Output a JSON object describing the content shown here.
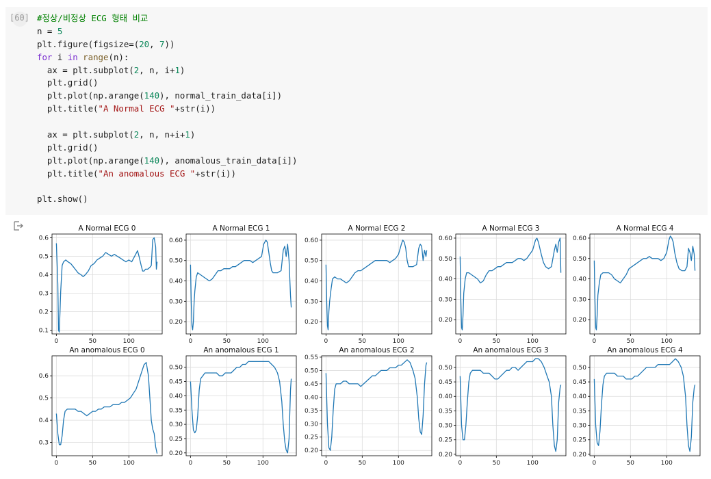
{
  "cell": {
    "execution_count": "[60]",
    "code_lines": [
      [
        {
          "t": "#정상/비정상 ECG 형태 비교",
          "c": "comment"
        }
      ],
      [
        {
          "t": "n = ",
          "c": "plain"
        },
        {
          "t": "5",
          "c": "num"
        }
      ],
      [
        {
          "t": "plt.figure(figsize=(",
          "c": "plain"
        },
        {
          "t": "20",
          "c": "num"
        },
        {
          "t": ", ",
          "c": "plain"
        },
        {
          "t": "7",
          "c": "num"
        },
        {
          "t": "))",
          "c": "plain"
        }
      ],
      [
        {
          "t": "for",
          "c": "kw"
        },
        {
          "t": " i ",
          "c": "plain"
        },
        {
          "t": "in",
          "c": "kw"
        },
        {
          "t": " ",
          "c": "plain"
        },
        {
          "t": "range",
          "c": "fn"
        },
        {
          "t": "(n):",
          "c": "plain"
        }
      ],
      [
        {
          "t": "  ax = plt.subplot(",
          "c": "plain"
        },
        {
          "t": "2",
          "c": "num"
        },
        {
          "t": ", n, i+",
          "c": "plain"
        },
        {
          "t": "1",
          "c": "num"
        },
        {
          "t": ")",
          "c": "plain"
        }
      ],
      [
        {
          "t": "  plt.grid()",
          "c": "plain"
        }
      ],
      [
        {
          "t": "  plt.plot(np.arange(",
          "c": "plain"
        },
        {
          "t": "140",
          "c": "num"
        },
        {
          "t": "), normal_train_data[i])",
          "c": "plain"
        }
      ],
      [
        {
          "t": "  plt.title(",
          "c": "plain"
        },
        {
          "t": "\"A Normal ECG \"",
          "c": "str"
        },
        {
          "t": "+str(i))",
          "c": "plain"
        }
      ],
      [],
      [
        {
          "t": "  ax = plt.subplot(",
          "c": "plain"
        },
        {
          "t": "2",
          "c": "num"
        },
        {
          "t": ", n, n+i+",
          "c": "plain"
        },
        {
          "t": "1",
          "c": "num"
        },
        {
          "t": ")",
          "c": "plain"
        }
      ],
      [
        {
          "t": "  plt.grid()",
          "c": "plain"
        }
      ],
      [
        {
          "t": "  plt.plot(np.arange(",
          "c": "plain"
        },
        {
          "t": "140",
          "c": "num"
        },
        {
          "t": "), anomalous_train_data[i])",
          "c": "plain"
        }
      ],
      [
        {
          "t": "  plt.title(",
          "c": "plain"
        },
        {
          "t": "\"An anomalous ECG \"",
          "c": "str"
        },
        {
          "t": "+str(i))",
          "c": "plain"
        }
      ],
      [],
      [
        {
          "t": "plt.show()",
          "c": "plain"
        }
      ]
    ]
  },
  "output": {
    "icon": "output-arrow-icon"
  },
  "colors": {
    "line": "#1f77b4",
    "grid": "#dcdcdc",
    "axes": "#000000",
    "cell_bg": "#f7f7f7"
  },
  "chart_data": [
    {
      "type": "line",
      "title": "A Normal ECG 0",
      "xlim": [
        -6,
        146
      ],
      "ylim": [
        0.08,
        0.62
      ],
      "xticks": [
        0,
        50,
        100
      ],
      "yticks": [
        0.1,
        0.2,
        0.3,
        0.4,
        0.5,
        0.6
      ],
      "grid": true,
      "x": [
        0,
        2,
        3,
        4,
        5,
        6,
        8,
        10,
        13,
        16,
        20,
        24,
        28,
        30,
        34,
        37,
        40,
        44,
        48,
        52,
        56,
        60,
        64,
        68,
        72,
        76,
        80,
        84,
        88,
        92,
        96,
        100,
        104,
        108,
        112,
        114,
        117,
        119,
        121,
        123,
        126,
        129,
        131,
        133,
        135,
        137,
        138,
        139
      ],
      "y": [
        0.57,
        0.35,
        0.1,
        0.09,
        0.2,
        0.31,
        0.45,
        0.47,
        0.48,
        0.47,
        0.46,
        0.44,
        0.42,
        0.41,
        0.4,
        0.39,
        0.4,
        0.42,
        0.45,
        0.46,
        0.48,
        0.49,
        0.5,
        0.52,
        0.51,
        0.5,
        0.51,
        0.5,
        0.49,
        0.48,
        0.47,
        0.48,
        0.47,
        0.5,
        0.53,
        0.5,
        0.45,
        0.42,
        0.42,
        0.43,
        0.43,
        0.44,
        0.45,
        0.59,
        0.6,
        0.55,
        0.43,
        0.47
      ]
    },
    {
      "type": "line",
      "title": "A Normal ECG 1",
      "xlim": [
        -6,
        146
      ],
      "ylim": [
        0.14,
        0.63
      ],
      "xticks": [
        0,
        50,
        100
      ],
      "yticks": [
        0.2,
        0.3,
        0.4,
        0.5,
        0.6
      ],
      "grid": true,
      "x": [
        0,
        1,
        2,
        3,
        4,
        5,
        6,
        8,
        10,
        14,
        18,
        22,
        26,
        30,
        34,
        38,
        42,
        46,
        50,
        54,
        58,
        62,
        66,
        70,
        74,
        78,
        82,
        86,
        90,
        94,
        98,
        101,
        104,
        106,
        108,
        110,
        112,
        114,
        117,
        120,
        125,
        128,
        130,
        132,
        134,
        136,
        138,
        139
      ],
      "y": [
        0.48,
        0.3,
        0.18,
        0.16,
        0.2,
        0.3,
        0.35,
        0.42,
        0.44,
        0.43,
        0.42,
        0.41,
        0.4,
        0.41,
        0.43,
        0.45,
        0.45,
        0.46,
        0.46,
        0.46,
        0.47,
        0.47,
        0.48,
        0.49,
        0.5,
        0.5,
        0.5,
        0.49,
        0.5,
        0.51,
        0.52,
        0.58,
        0.6,
        0.59,
        0.54,
        0.49,
        0.45,
        0.44,
        0.44,
        0.44,
        0.45,
        0.55,
        0.57,
        0.52,
        0.58,
        0.5,
        0.33,
        0.27
      ]
    },
    {
      "type": "line",
      "title": "A Normal ECG 2",
      "xlim": [
        -6,
        146
      ],
      "ylim": [
        0.14,
        0.63
      ],
      "xticks": [
        0,
        50,
        100
      ],
      "yticks": [
        0.2,
        0.3,
        0.4,
        0.5,
        0.6
      ],
      "grid": true,
      "x": [
        0,
        1,
        2,
        3,
        4,
        5,
        7,
        9,
        12,
        16,
        20,
        24,
        28,
        32,
        36,
        40,
        44,
        48,
        52,
        56,
        60,
        64,
        68,
        72,
        76,
        80,
        84,
        88,
        92,
        96,
        100,
        104,
        106,
        108,
        110,
        112,
        114,
        117,
        120,
        125,
        128,
        130,
        132,
        134,
        136,
        138,
        139
      ],
      "y": [
        0.48,
        0.3,
        0.18,
        0.16,
        0.25,
        0.3,
        0.36,
        0.41,
        0.42,
        0.41,
        0.41,
        0.4,
        0.39,
        0.4,
        0.42,
        0.44,
        0.45,
        0.45,
        0.46,
        0.47,
        0.48,
        0.49,
        0.5,
        0.5,
        0.5,
        0.5,
        0.5,
        0.49,
        0.5,
        0.51,
        0.53,
        0.58,
        0.6,
        0.59,
        0.56,
        0.5,
        0.47,
        0.47,
        0.47,
        0.48,
        0.56,
        0.58,
        0.57,
        0.5,
        0.55,
        0.52,
        0.55
      ]
    },
    {
      "type": "line",
      "title": "A Normal ECG 3",
      "xlim": [
        -6,
        146
      ],
      "ylim": [
        0.13,
        0.62
      ],
      "xticks": [
        0,
        50,
        100
      ],
      "yticks": [
        0.2,
        0.3,
        0.4,
        0.5,
        0.6
      ],
      "grid": true,
      "x": [
        0,
        1,
        2,
        3,
        4,
        5,
        7,
        9,
        12,
        16,
        20,
        24,
        28,
        32,
        36,
        40,
        44,
        48,
        52,
        56,
        60,
        64,
        68,
        72,
        76,
        80,
        84,
        88,
        92,
        96,
        100,
        104,
        106,
        108,
        110,
        112,
        115,
        118,
        122,
        126,
        130,
        132,
        134,
        136,
        138,
        139
      ],
      "y": [
        0.51,
        0.3,
        0.16,
        0.15,
        0.22,
        0.33,
        0.4,
        0.43,
        0.43,
        0.42,
        0.41,
        0.4,
        0.38,
        0.39,
        0.42,
        0.44,
        0.44,
        0.45,
        0.46,
        0.46,
        0.47,
        0.48,
        0.48,
        0.48,
        0.49,
        0.5,
        0.5,
        0.49,
        0.5,
        0.52,
        0.54,
        0.59,
        0.6,
        0.58,
        0.55,
        0.52,
        0.48,
        0.46,
        0.45,
        0.46,
        0.54,
        0.57,
        0.53,
        0.58,
        0.6,
        0.43
      ]
    },
    {
      "type": "line",
      "title": "A Normal ECG 4",
      "xlim": [
        -6,
        146
      ],
      "ylim": [
        0.13,
        0.62
      ],
      "xticks": [
        0,
        50,
        100
      ],
      "yticks": [
        0.2,
        0.3,
        0.4,
        0.5,
        0.6
      ],
      "grid": true,
      "x": [
        0,
        1,
        2,
        3,
        4,
        5,
        7,
        9,
        12,
        16,
        20,
        24,
        28,
        32,
        36,
        40,
        44,
        48,
        52,
        56,
        60,
        64,
        68,
        72,
        76,
        80,
        84,
        88,
        92,
        96,
        100,
        103,
        105,
        107,
        109,
        111,
        114,
        117,
        121,
        125,
        128,
        130,
        132,
        134,
        136,
        138,
        139
      ],
      "y": [
        0.49,
        0.3,
        0.16,
        0.15,
        0.22,
        0.32,
        0.38,
        0.42,
        0.43,
        0.43,
        0.43,
        0.42,
        0.4,
        0.39,
        0.38,
        0.4,
        0.42,
        0.45,
        0.46,
        0.47,
        0.48,
        0.49,
        0.5,
        0.5,
        0.51,
        0.5,
        0.5,
        0.5,
        0.49,
        0.5,
        0.53,
        0.59,
        0.61,
        0.6,
        0.58,
        0.53,
        0.48,
        0.45,
        0.44,
        0.44,
        0.46,
        0.55,
        0.53,
        0.49,
        0.56,
        0.52,
        0.44
      ]
    },
    {
      "type": "line",
      "title": "An anomalous ECG 0",
      "xlim": [
        -6,
        146
      ],
      "ylim": [
        0.24,
        0.69
      ],
      "xticks": [
        0,
        50,
        100
      ],
      "yticks": [
        0.3,
        0.4,
        0.5,
        0.6
      ],
      "grid": true,
      "x": [
        0,
        2,
        4,
        6,
        8,
        10,
        12,
        15,
        18,
        22,
        26,
        30,
        34,
        38,
        42,
        46,
        50,
        54,
        58,
        62,
        66,
        70,
        74,
        78,
        82,
        86,
        90,
        94,
        98,
        102,
        106,
        110,
        114,
        118,
        121,
        124,
        127,
        129,
        131,
        133,
        135,
        137,
        139
      ],
      "y": [
        0.43,
        0.34,
        0.29,
        0.29,
        0.33,
        0.4,
        0.44,
        0.45,
        0.45,
        0.45,
        0.45,
        0.44,
        0.44,
        0.43,
        0.42,
        0.43,
        0.44,
        0.44,
        0.45,
        0.45,
        0.46,
        0.46,
        0.46,
        0.47,
        0.47,
        0.47,
        0.48,
        0.48,
        0.49,
        0.5,
        0.52,
        0.54,
        0.58,
        0.62,
        0.65,
        0.66,
        0.6,
        0.5,
        0.4,
        0.36,
        0.34,
        0.28,
        0.25
      ]
    },
    {
      "type": "line",
      "title": "An anomalous ECG 1",
      "xlim": [
        -6,
        146
      ],
      "ylim": [
        0.19,
        0.54
      ],
      "xticks": [
        0,
        50,
        100
      ],
      "yticks": [
        0.2,
        0.25,
        0.3,
        0.35,
        0.4,
        0.45,
        0.5
      ],
      "grid": true,
      "x": [
        0,
        2,
        4,
        6,
        8,
        10,
        12,
        14,
        17,
        20,
        24,
        28,
        32,
        36,
        40,
        44,
        48,
        52,
        56,
        60,
        64,
        68,
        72,
        76,
        80,
        84,
        88,
        92,
        96,
        100,
        104,
        108,
        112,
        116,
        120,
        123,
        126,
        128,
        130,
        132,
        134,
        136,
        138,
        139
      ],
      "y": [
        0.45,
        0.35,
        0.28,
        0.27,
        0.28,
        0.33,
        0.42,
        0.46,
        0.47,
        0.48,
        0.48,
        0.48,
        0.48,
        0.48,
        0.47,
        0.47,
        0.48,
        0.48,
        0.48,
        0.49,
        0.5,
        0.5,
        0.51,
        0.51,
        0.52,
        0.52,
        0.52,
        0.52,
        0.52,
        0.52,
        0.52,
        0.52,
        0.51,
        0.5,
        0.48,
        0.45,
        0.38,
        0.3,
        0.24,
        0.21,
        0.2,
        0.25,
        0.42,
        0.46
      ]
    },
    {
      "type": "line",
      "title": "An anomalous ECG 2",
      "xlim": [
        -6,
        146
      ],
      "ylim": [
        0.18,
        0.555
      ],
      "xticks": [
        0,
        50,
        100
      ],
      "yticks": [
        0.2,
        0.25,
        0.3,
        0.35,
        0.4,
        0.45,
        0.5,
        0.55
      ],
      "grid": true,
      "x": [
        0,
        2,
        4,
        6,
        8,
        10,
        12,
        14,
        17,
        20,
        24,
        28,
        32,
        36,
        40,
        44,
        48,
        52,
        56,
        60,
        64,
        68,
        72,
        76,
        80,
        84,
        88,
        92,
        96,
        100,
        104,
        108,
        112,
        116,
        120,
        123,
        126,
        128,
        130,
        132,
        134,
        136,
        138,
        139
      ],
      "y": [
        0.49,
        0.3,
        0.21,
        0.2,
        0.25,
        0.35,
        0.43,
        0.45,
        0.45,
        0.45,
        0.46,
        0.46,
        0.45,
        0.45,
        0.45,
        0.45,
        0.44,
        0.45,
        0.46,
        0.47,
        0.48,
        0.48,
        0.49,
        0.5,
        0.5,
        0.5,
        0.51,
        0.51,
        0.51,
        0.52,
        0.52,
        0.53,
        0.54,
        0.53,
        0.5,
        0.47,
        0.4,
        0.32,
        0.27,
        0.26,
        0.33,
        0.45,
        0.52,
        0.53
      ]
    },
    {
      "type": "line",
      "title": "An anomalous ECG 3",
      "xlim": [
        -6,
        146
      ],
      "ylim": [
        0.195,
        0.54
      ],
      "xticks": [
        0,
        50,
        100
      ],
      "yticks": [
        0.2,
        0.25,
        0.3,
        0.35,
        0.4,
        0.45,
        0.5
      ],
      "grid": true,
      "x": [
        0,
        2,
        4,
        6,
        8,
        10,
        12,
        14,
        17,
        20,
        24,
        28,
        32,
        36,
        40,
        44,
        48,
        52,
        56,
        60,
        64,
        68,
        72,
        76,
        80,
        84,
        88,
        92,
        96,
        100,
        104,
        108,
        112,
        116,
        120,
        123,
        126,
        128,
        130,
        132,
        134,
        136,
        138,
        139
      ],
      "y": [
        0.47,
        0.3,
        0.25,
        0.25,
        0.3,
        0.38,
        0.45,
        0.48,
        0.49,
        0.49,
        0.49,
        0.49,
        0.48,
        0.48,
        0.48,
        0.47,
        0.46,
        0.46,
        0.47,
        0.48,
        0.49,
        0.49,
        0.5,
        0.5,
        0.49,
        0.5,
        0.51,
        0.52,
        0.52,
        0.52,
        0.53,
        0.53,
        0.52,
        0.5,
        0.47,
        0.45,
        0.4,
        0.3,
        0.23,
        0.21,
        0.25,
        0.38,
        0.43,
        0.44
      ]
    },
    {
      "type": "line",
      "title": "An anomalous ECG 4",
      "xlim": [
        -6,
        146
      ],
      "ylim": [
        0.195,
        0.54
      ],
      "xticks": [
        0,
        50,
        100
      ],
      "yticks": [
        0.2,
        0.25,
        0.3,
        0.35,
        0.4,
        0.45,
        0.5
      ],
      "grid": true,
      "x": [
        0,
        2,
        4,
        6,
        8,
        10,
        12,
        14,
        17,
        20,
        24,
        28,
        32,
        36,
        40,
        44,
        48,
        52,
        56,
        60,
        64,
        68,
        72,
        76,
        80,
        84,
        88,
        92,
        96,
        100,
        104,
        108,
        112,
        116,
        120,
        123,
        126,
        128,
        130,
        132,
        134,
        136,
        138,
        139
      ],
      "y": [
        0.46,
        0.3,
        0.24,
        0.23,
        0.28,
        0.37,
        0.44,
        0.47,
        0.48,
        0.48,
        0.48,
        0.48,
        0.47,
        0.47,
        0.47,
        0.46,
        0.46,
        0.46,
        0.47,
        0.47,
        0.48,
        0.49,
        0.5,
        0.5,
        0.5,
        0.5,
        0.51,
        0.51,
        0.51,
        0.51,
        0.51,
        0.52,
        0.53,
        0.52,
        0.5,
        0.47,
        0.4,
        0.3,
        0.23,
        0.21,
        0.26,
        0.38,
        0.43,
        0.44
      ]
    }
  ]
}
